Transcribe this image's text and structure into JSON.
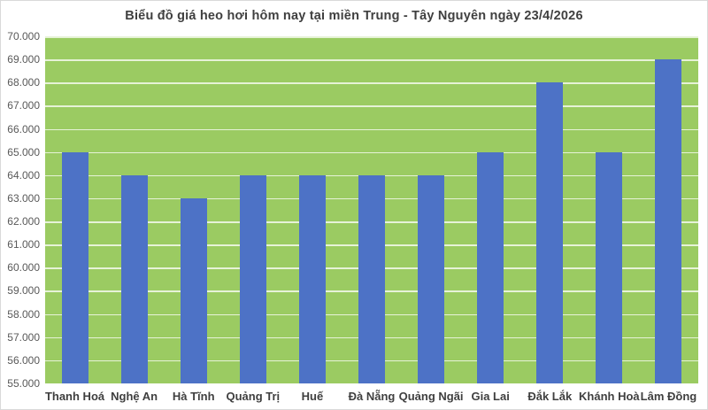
{
  "chart_data": {
    "type": "bar",
    "title": "Biểu đồ giá heo hơi hôm nay tại miền Trung - Tây Nguyên ngày 23/4/2026",
    "categories": [
      "Thanh Hoá",
      "Nghệ An",
      "Hà Tĩnh",
      "Quảng Trị",
      "Huế",
      "Đà Nẵng",
      "Quảng Ngãi",
      "Gia Lai",
      "Đắk Lắk",
      "Khánh Hoà",
      "Lâm Đồng"
    ],
    "values": [
      65000,
      64000,
      63000,
      64000,
      64000,
      64000,
      64000,
      65000,
      68000,
      65000,
      69000
    ],
    "xlabel": "",
    "ylabel": "",
    "ylim": [
      55000,
      70000
    ],
    "ytick_step": 1000,
    "ytick_labels": [
      "70.000",
      "69.000",
      "68.000",
      "67.000",
      "66.000",
      "65.000",
      "64.000",
      "63.000",
      "62.000",
      "61.000",
      "60.000",
      "59.000",
      "58.000",
      "57.000",
      "56.000",
      "55.000"
    ],
    "grid": true,
    "legend_position": "none",
    "colors": {
      "bar": "#4d72c6",
      "plot_background": "#9bcb62",
      "gridline": "rgba(255,255,255,0.75)",
      "title_text": "#3f3f3f",
      "ytick_text": "#595959",
      "xtick_text": "#3f3f3f",
      "page_background": "#ffffff",
      "frame_border": "#d9d9d9"
    }
  }
}
